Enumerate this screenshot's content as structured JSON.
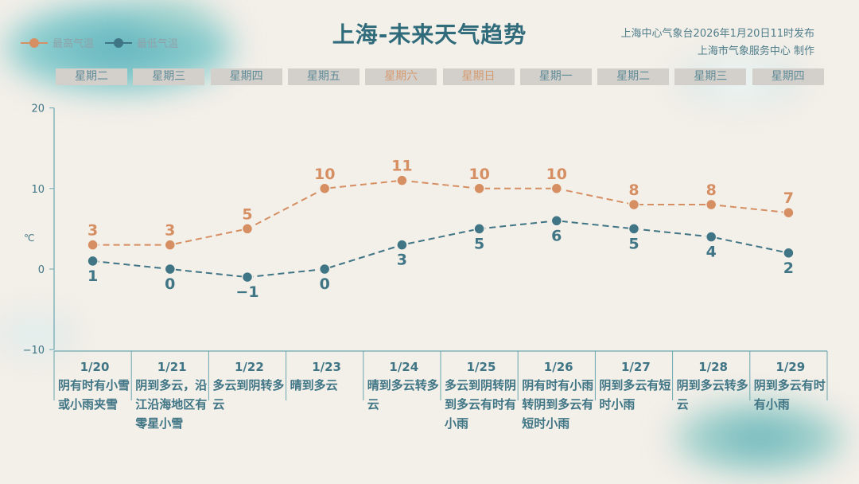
{
  "title": "上海-未来天气趋势",
  "source_line1": "上海中心气象台2026年1月20日11时发布",
  "source_line2": "上海市气象服务中心 制作",
  "colors": {
    "high": "#d68f62",
    "low": "#3f7585",
    "axis": "#6aa7b0",
    "weekend": "#d49a72"
  },
  "weekdays": [
    {
      "label": "星期二",
      "weekend": false
    },
    {
      "label": "星期三",
      "weekend": false
    },
    {
      "label": "星期四",
      "weekend": false
    },
    {
      "label": "星期五",
      "weekend": false
    },
    {
      "label": "星期六",
      "weekend": true
    },
    {
      "label": "星期日",
      "weekend": true
    },
    {
      "label": "星期一",
      "weekend": false
    },
    {
      "label": "星期二",
      "weekend": false
    },
    {
      "label": "星期三",
      "weekend": false
    },
    {
      "label": "星期四",
      "weekend": false
    }
  ],
  "chart_data": {
    "type": "line",
    "title": "上海-未来天气趋势",
    "ylabel": "℃",
    "ylim": [
      -10,
      20
    ],
    "yticks": [
      -10,
      0,
      10,
      20
    ],
    "grid": false,
    "legend": "top-left",
    "categories": [
      "1/20",
      "1/21",
      "1/22",
      "1/23",
      "1/24",
      "1/25",
      "1/26",
      "1/27",
      "1/28",
      "1/29"
    ],
    "series": [
      {
        "name": "最高气温",
        "color": "#d68f62",
        "style": "dashed",
        "values": [
          3,
          3,
          5,
          10,
          11,
          10,
          10,
          8,
          8,
          7
        ]
      },
      {
        "name": "最低气温",
        "color": "#3f7585",
        "style": "dashed",
        "values": [
          1,
          0,
          -1,
          0,
          3,
          5,
          6,
          5,
          4,
          2
        ]
      }
    ],
    "weather": [
      "阴有时有小雪或小雨夹雪",
      "阴到多云，沿江沿海地区有零星小雪",
      "多云到阴转多云",
      "晴到多云",
      "晴到多云转多云",
      "多云到阴转阴到多云有时有小雨",
      "阴有时有小雨转阴到多云有短时小雨",
      "阴到多云有短时小雨",
      "阴到多云转多云",
      "阴到多云有时有小雨"
    ]
  }
}
